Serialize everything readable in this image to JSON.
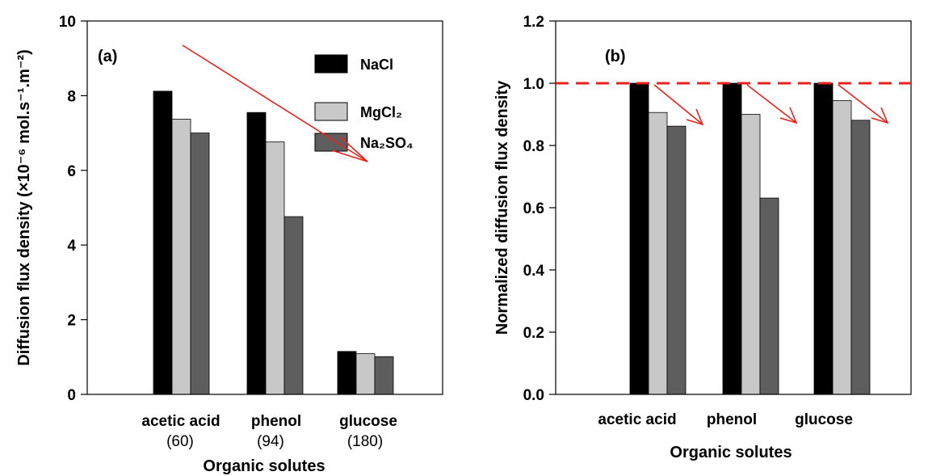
{
  "colors": {
    "NaCl": "#000000",
    "MgCl2": "#c8c8c8",
    "Na2SO4": "#5e5e5e",
    "arrow": "#e8221c",
    "reference_line": "#e8221c"
  },
  "chart_data": [
    {
      "type": "bar",
      "panel_label": "(a)",
      "categories": [
        "acetic acid",
        "phenol",
        "glucose"
      ],
      "category_sublabels": [
        "(60)",
        "(94)",
        "(180)"
      ],
      "ylim": [
        0,
        10
      ],
      "yticks": [
        0,
        2,
        4,
        6,
        8,
        10
      ],
      "ytick_labels": [
        "0",
        "2",
        "4",
        "6",
        "8",
        "10"
      ],
      "ylabel": "Diffusion flux density (×10⁻⁶ mol.s⁻¹.m⁻²)",
      "xlabel": "Organic solutes",
      "legend": {
        "position": "top-right",
        "entries": [
          "NaCl",
          "MgCl₂",
          "Na₂SO₄"
        ]
      },
      "series": [
        {
          "name": "NaCl",
          "values": [
            8.12,
            7.55,
            1.15
          ]
        },
        {
          "name": "MgCl₂",
          "values": [
            7.37,
            6.76,
            1.09
          ]
        },
        {
          "name": "Na₂SO₄",
          "values": [
            7.0,
            4.76,
            1.01
          ]
        }
      ],
      "grid": false
    },
    {
      "type": "bar",
      "panel_label": "(b)",
      "categories": [
        "acetic acid",
        "phenol",
        "glucose"
      ],
      "ylim": [
        0,
        1.2
      ],
      "yticks": [
        0,
        0.2,
        0.4,
        0.6,
        0.8,
        1.0,
        1.2
      ],
      "ytick_labels": [
        "0.0",
        "0.2",
        "0.4",
        "0.6",
        "0.8",
        "1.0",
        "1.2"
      ],
      "ylabel": "Normalized diffusion flux density",
      "xlabel": "Organic solutes",
      "reference_line": 1.0,
      "series": [
        {
          "name": "NaCl",
          "values": [
            1.0,
            1.0,
            1.0
          ]
        },
        {
          "name": "MgCl₂",
          "values": [
            0.906,
            0.9,
            0.944
          ]
        },
        {
          "name": "Na₂SO₄",
          "values": [
            0.862,
            0.631,
            0.881
          ]
        }
      ],
      "grid": false
    }
  ]
}
